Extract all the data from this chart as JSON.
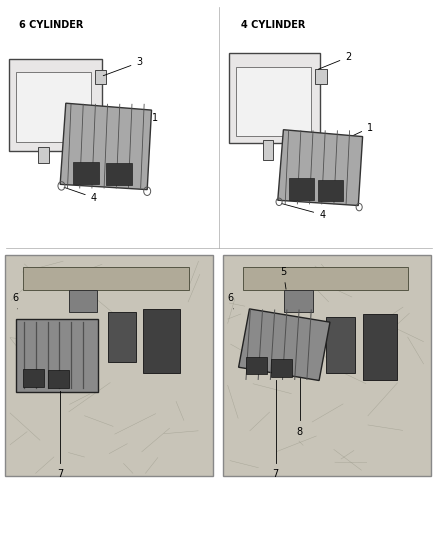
{
  "background_color": "#ffffff",
  "label_6cyl": "6 CYLINDER",
  "label_4cyl": "4 CYLINDER",
  "label_fontsize": 7,
  "line_color": "#000000",
  "div_color": "#aaaaaa",
  "photo_bg": "#c8c4b8",
  "photo_edge": "#888888",
  "bracket_face": "#e8e6e6",
  "ecm_face": "#a8a8a8",
  "conn_face": "#383838",
  "eng_face1": "#505050",
  "eng_face2": "#404040",
  "rib_color": "#505050",
  "screw_color": "#555555"
}
